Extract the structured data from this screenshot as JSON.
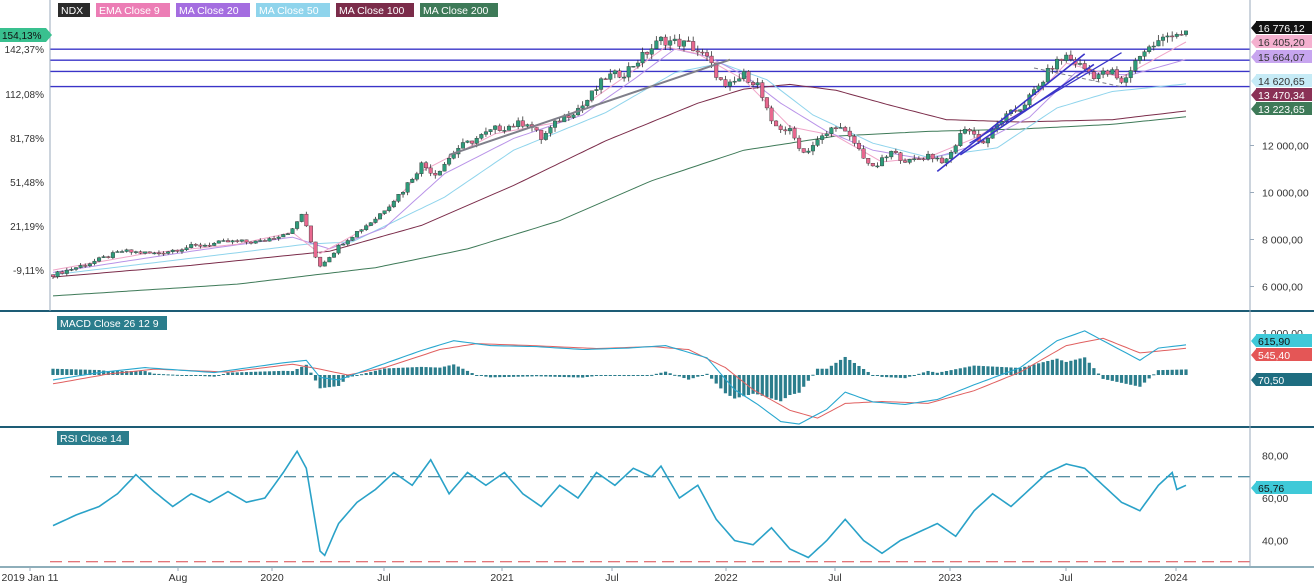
{
  "legend": [
    {
      "label": "NDX",
      "color": "#2b2b2b"
    },
    {
      "label": "EMA Close 9",
      "color": "#e76fae"
    },
    {
      "label": "MA Close 20",
      "color": "#9a5fd6"
    },
    {
      "label": "MA Close 50",
      "color": "#8fd4ec"
    },
    {
      "label": "MA Close 100",
      "color": "#7b2c4a"
    },
    {
      "label": "MA Close 200",
      "color": "#3e7a58"
    }
  ],
  "colors": {
    "up": "#2e9b7a",
    "down": "#e8688f",
    "hline": "#3a34c8",
    "trend_gray": "#7f7f8a",
    "macd": "#28a7cf",
    "signal": "#e06060",
    "hist": "#2b7d8c",
    "rsi": "#2aa2c8",
    "rsi_upper": "#1f6b85",
    "rsi_lower": "#d9484f",
    "border": "#1d5c75"
  },
  "chart_data": [
    {
      "type": "candlestick",
      "name": "NDX",
      "x_ticks": [
        "2019 Jan 11",
        "Aug",
        "2020",
        "Jul",
        "2021",
        "Jul",
        "2022",
        "Jul",
        "2023",
        "Jul",
        "2024"
      ],
      "left_axis_ticks": [
        "154,13%",
        "142,37%",
        "112,08%",
        "81,78%",
        "51,48%",
        "21,19%",
        "-9,11%"
      ],
      "right_axis_ticks": [
        "12 000,00",
        "10 000,00",
        "8 000,00",
        "6 000,00"
      ],
      "y_range": [
        5000,
        17000
      ],
      "last_values": [
        {
          "label": "16 776,12",
          "color": "#111111"
        },
        {
          "label": "16 405,20",
          "color": "#f4b0cf"
        },
        {
          "label": "15 664,07",
          "color": "#c7a5ef"
        },
        {
          "label": "14 620,65",
          "color": "#c6ebf6"
        },
        {
          "label": "13 470,34",
          "color": "#8a3156"
        },
        {
          "label": "13 223,65",
          "color": "#3e7a58"
        }
      ],
      "horizontal_levels": [
        16100,
        15630,
        15150,
        14510
      ],
      "close_weekly_anchors": [
        [
          0,
          6500
        ],
        [
          8,
          7000
        ],
        [
          15,
          7500
        ],
        [
          22,
          7400
        ],
        [
          30,
          7700
        ],
        [
          38,
          7900
        ],
        [
          45,
          7900
        ],
        [
          52,
          8400
        ],
        [
          54,
          9100
        ],
        [
          57,
          7300
        ],
        [
          58,
          6900
        ],
        [
          63,
          7900
        ],
        [
          70,
          8900
        ],
        [
          76,
          10100
        ],
        [
          80,
          11200
        ],
        [
          83,
          10800
        ],
        [
          88,
          11900
        ],
        [
          96,
          12700
        ],
        [
          103,
          13000
        ],
        [
          106,
          12300
        ],
        [
          110,
          13100
        ],
        [
          115,
          13700
        ],
        [
          120,
          14900
        ],
        [
          124,
          15100
        ],
        [
          128,
          15800
        ],
        [
          132,
          16500
        ],
        [
          138,
          16300
        ],
        [
          142,
          15700
        ],
        [
          146,
          14400
        ],
        [
          150,
          15000
        ],
        [
          153,
          14600
        ],
        [
          156,
          12900
        ],
        [
          160,
          12600
        ],
        [
          163,
          11700
        ],
        [
          168,
          12500
        ],
        [
          170,
          12900
        ],
        [
          174,
          12100
        ],
        [
          178,
          11000
        ],
        [
          182,
          11700
        ],
        [
          186,
          11300
        ],
        [
          190,
          11600
        ],
        [
          194,
          11300
        ],
        [
          198,
          12800
        ],
        [
          202,
          12100
        ],
        [
          206,
          13100
        ],
        [
          210,
          13600
        ],
        [
          214,
          14500
        ],
        [
          217,
          15400
        ],
        [
          220,
          15800
        ],
        [
          226,
          15000
        ],
        [
          230,
          15100
        ],
        [
          232,
          14600
        ],
        [
          236,
          15900
        ],
        [
          240,
          16400
        ],
        [
          243,
          16800
        ],
        [
          246,
          16776
        ]
      ],
      "ema9_anchors": [
        [
          0,
          6700
        ],
        [
          20,
          7400
        ],
        [
          40,
          7800
        ],
        [
          52,
          8300
        ],
        [
          58,
          7400
        ],
        [
          70,
          8700
        ],
        [
          80,
          10900
        ],
        [
          96,
          12500
        ],
        [
          110,
          13000
        ],
        [
          124,
          14900
        ],
        [
          133,
          16200
        ],
        [
          140,
          15900
        ],
        [
          150,
          14800
        ],
        [
          160,
          12800
        ],
        [
          170,
          12400
        ],
        [
          180,
          11300
        ],
        [
          190,
          11500
        ],
        [
          200,
          12300
        ],
        [
          210,
          13400
        ],
        [
          220,
          15500
        ],
        [
          232,
          14900
        ],
        [
          246,
          16405
        ]
      ],
      "ma20_anchors": [
        [
          0,
          6600
        ],
        [
          30,
          7500
        ],
        [
          52,
          8100
        ],
        [
          60,
          7600
        ],
        [
          72,
          8500
        ],
        [
          85,
          10800
        ],
        [
          100,
          12300
        ],
        [
          115,
          13300
        ],
        [
          126,
          14800
        ],
        [
          135,
          16100
        ],
        [
          142,
          15800
        ],
        [
          150,
          15000
        ],
        [
          158,
          13800
        ],
        [
          168,
          12600
        ],
        [
          178,
          11800
        ],
        [
          190,
          11400
        ],
        [
          200,
          12000
        ],
        [
          212,
          13200
        ],
        [
          222,
          15100
        ],
        [
          234,
          15000
        ],
        [
          246,
          15664
        ]
      ],
      "ma50_anchors": [
        [
          0,
          6500
        ],
        [
          30,
          7200
        ],
        [
          55,
          7800
        ],
        [
          65,
          7900
        ],
        [
          85,
          9800
        ],
        [
          100,
          11800
        ],
        [
          120,
          13400
        ],
        [
          135,
          15100
        ],
        [
          145,
          15500
        ],
        [
          155,
          14800
        ],
        [
          165,
          13300
        ],
        [
          178,
          12100
        ],
        [
          190,
          11500
        ],
        [
          205,
          11900
        ],
        [
          218,
          13600
        ],
        [
          230,
          14300
        ],
        [
          246,
          14620
        ]
      ],
      "ma100_anchors": [
        [
          0,
          6400
        ],
        [
          30,
          6900
        ],
        [
          60,
          7500
        ],
        [
          80,
          8600
        ],
        [
          100,
          10300
        ],
        [
          120,
          12200
        ],
        [
          140,
          13800
        ],
        [
          150,
          14400
        ],
        [
          160,
          14600
        ],
        [
          170,
          14350
        ],
        [
          182,
          13700
        ],
        [
          194,
          13100
        ],
        [
          210,
          13000
        ],
        [
          230,
          13100
        ],
        [
          246,
          13470
        ]
      ],
      "ma200_anchors": [
        [
          0,
          5600
        ],
        [
          40,
          6100
        ],
        [
          70,
          6800
        ],
        [
          90,
          7600
        ],
        [
          110,
          8800
        ],
        [
          130,
          10500
        ],
        [
          150,
          11800
        ],
        [
          170,
          12400
        ],
        [
          190,
          12600
        ],
        [
          210,
          12700
        ],
        [
          230,
          12900
        ],
        [
          246,
          13223
        ]
      ]
    },
    {
      "type": "macd",
      "title": "MACD Close 26 12 9",
      "ticks": [
        "1 000,00"
      ],
      "last_values": [
        {
          "label": "615,90",
          "color": "#38c0d9"
        },
        {
          "label": "545,40",
          "color": "#e45656"
        },
        {
          "label": "70,50",
          "color": "#1e6d80"
        }
      ],
      "y_range": [
        -1000,
        1000
      ],
      "macd_anchors": [
        [
          0,
          -100
        ],
        [
          10,
          50
        ],
        [
          20,
          150
        ],
        [
          35,
          50
        ],
        [
          50,
          250
        ],
        [
          55,
          300
        ],
        [
          58,
          -50
        ],
        [
          62,
          -100
        ],
        [
          68,
          100
        ],
        [
          80,
          500
        ],
        [
          87,
          700
        ],
        [
          95,
          600
        ],
        [
          105,
          580
        ],
        [
          115,
          520
        ],
        [
          125,
          550
        ],
        [
          133,
          600
        ],
        [
          142,
          350
        ],
        [
          148,
          -300
        ],
        [
          153,
          -600
        ],
        [
          158,
          -950
        ],
        [
          162,
          -1000
        ],
        [
          168,
          -700
        ],
        [
          172,
          -350
        ],
        [
          178,
          -550
        ],
        [
          185,
          -600
        ],
        [
          192,
          -500
        ],
        [
          200,
          -200
        ],
        [
          210,
          150
        ],
        [
          218,
          700
        ],
        [
          224,
          900
        ],
        [
          230,
          600
        ],
        [
          236,
          300
        ],
        [
          240,
          550
        ],
        [
          246,
          616
        ]
      ],
      "signal_anchors": [
        [
          0,
          -180
        ],
        [
          12,
          20
        ],
        [
          22,
          120
        ],
        [
          38,
          60
        ],
        [
          52,
          220
        ],
        [
          58,
          120
        ],
        [
          64,
          0
        ],
        [
          72,
          150
        ],
        [
          84,
          520
        ],
        [
          92,
          640
        ],
        [
          104,
          600
        ],
        [
          118,
          540
        ],
        [
          130,
          580
        ],
        [
          138,
          520
        ],
        [
          146,
          150
        ],
        [
          152,
          -300
        ],
        [
          160,
          -720
        ],
        [
          166,
          -880
        ],
        [
          172,
          -580
        ],
        [
          180,
          -540
        ],
        [
          190,
          -580
        ],
        [
          200,
          -320
        ],
        [
          210,
          60
        ],
        [
          220,
          600
        ],
        [
          228,
          750
        ],
        [
          236,
          450
        ],
        [
          246,
          545
        ]
      ]
    },
    {
      "type": "line",
      "title": "RSI Close 14",
      "ticks": [
        "80,00",
        "60,00",
        "40,00"
      ],
      "y_range": [
        28,
        92
      ],
      "levels": [
        70,
        30
      ],
      "last_values": [
        {
          "label": "65,76",
          "color": "#38c0d9"
        }
      ],
      "rsi_anchors": [
        [
          0,
          47
        ],
        [
          5,
          52
        ],
        [
          10,
          56
        ],
        [
          14,
          62
        ],
        [
          18,
          71
        ],
        [
          22,
          63
        ],
        [
          26,
          56
        ],
        [
          30,
          62
        ],
        [
          34,
          58
        ],
        [
          38,
          63
        ],
        [
          42,
          58
        ],
        [
          46,
          60
        ],
        [
          50,
          72
        ],
        [
          53,
          82
        ],
        [
          55,
          74
        ],
        [
          58,
          35
        ],
        [
          59,
          33
        ],
        [
          62,
          48
        ],
        [
          66,
          58
        ],
        [
          70,
          64
        ],
        [
          74,
          72
        ],
        [
          78,
          66
        ],
        [
          82,
          78
        ],
        [
          86,
          62
        ],
        [
          90,
          72
        ],
        [
          94,
          66
        ],
        [
          98,
          72
        ],
        [
          102,
          62
        ],
        [
          106,
          56
        ],
        [
          110,
          66
        ],
        [
          114,
          60
        ],
        [
          118,
          72
        ],
        [
          122,
          66
        ],
        [
          126,
          74
        ],
        [
          130,
          70
        ],
        [
          132,
          75
        ],
        [
          136,
          60
        ],
        [
          140,
          66
        ],
        [
          144,
          50
        ],
        [
          148,
          40
        ],
        [
          152,
          38
        ],
        [
          156,
          46
        ],
        [
          160,
          36
        ],
        [
          164,
          32
        ],
        [
          168,
          40
        ],
        [
          172,
          50
        ],
        [
          176,
          40
        ],
        [
          180,
          34
        ],
        [
          184,
          40
        ],
        [
          188,
          44
        ],
        [
          192,
          48
        ],
        [
          196,
          42
        ],
        [
          200,
          54
        ],
        [
          204,
          62
        ],
        [
          208,
          56
        ],
        [
          212,
          64
        ],
        [
          216,
          72
        ],
        [
          220,
          76
        ],
        [
          224,
          74
        ],
        [
          228,
          66
        ],
        [
          232,
          58
        ],
        [
          236,
          54
        ],
        [
          240,
          66
        ],
        [
          243,
          72
        ],
        [
          244,
          64
        ],
        [
          246,
          66
        ]
      ]
    }
  ]
}
